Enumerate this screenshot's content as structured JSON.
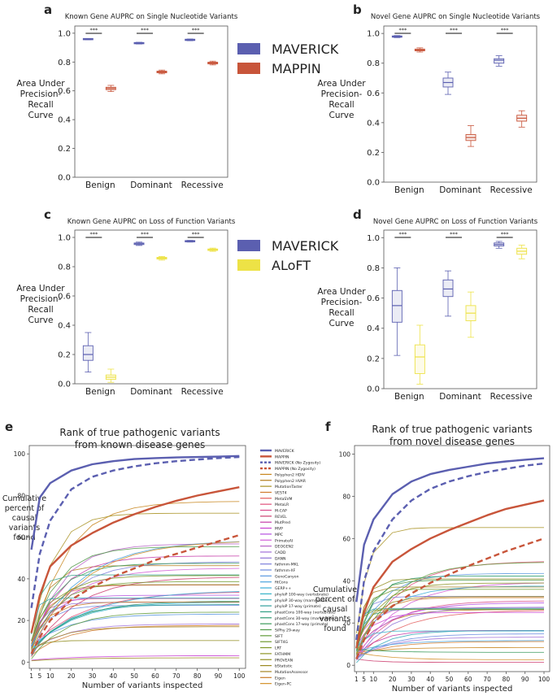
{
  "colors": {
    "maverick": "#5b5fb0",
    "mappin": "#c8553a",
    "aloft": "#ede246",
    "axis": "#555555",
    "text": "#222222"
  },
  "box_panels": [
    {
      "id": "a",
      "letter": "a",
      "title": "Known Gene AUPRC on Single Nucleotide Variants",
      "ylabel": [
        "Area Under",
        "Precision-",
        "Recall",
        "Curve"
      ],
      "yticks": [
        "0.0",
        "0.2",
        "0.4",
        "0.6",
        "0.8",
        "1.0"
      ],
      "categories": [
        "Benign",
        "Dominant",
        "Recessive"
      ],
      "sig": "***",
      "legend": [
        "MAVERICK",
        "MAPPIN"
      ],
      "series": [
        {
          "name": "MAVERICK",
          "color_key": "maverick",
          "boxes": [
            [
              0.955,
              0.957,
              0.959,
              0.961,
              0.963
            ],
            [
              0.925,
              0.928,
              0.931,
              0.934,
              0.937
            ],
            [
              0.948,
              0.951,
              0.954,
              0.957,
              0.96
            ]
          ]
        },
        {
          "name": "MAPPIN",
          "color_key": "mappin",
          "boxes": [
            [
              0.595,
              0.608,
              0.617,
              0.625,
              0.638
            ],
            [
              0.718,
              0.725,
              0.731,
              0.737,
              0.744
            ],
            [
              0.78,
              0.787,
              0.793,
              0.799,
              0.806
            ]
          ]
        }
      ]
    },
    {
      "id": "b",
      "letter": "b",
      "title": "Novel Gene AUPRC on Single Nucleotide Variants",
      "ylabel": [
        "Area Under",
        "Precision-",
        "Recall",
        "Curve"
      ],
      "yticks": [
        "0.0",
        "0.2",
        "0.4",
        "0.6",
        "0.8",
        "1.0"
      ],
      "categories": [
        "Benign",
        "Dominant",
        "Recessive"
      ],
      "sig": "***",
      "legend": [],
      "series": [
        {
          "name": "MAVERICK",
          "color_key": "maverick",
          "boxes": [
            [
              0.972,
              0.976,
              0.979,
              0.982,
              0.986
            ],
            [
              0.59,
              0.64,
              0.67,
              0.7,
              0.74
            ],
            [
              0.78,
              0.8,
              0.82,
              0.83,
              0.85
            ]
          ]
        },
        {
          "name": "MAPPIN",
          "color_key": "mappin",
          "boxes": [
            [
              0.875,
              0.883,
              0.889,
              0.895,
              0.903
            ],
            [
              0.24,
              0.28,
              0.3,
              0.32,
              0.38
            ],
            [
              0.37,
              0.41,
              0.43,
              0.45,
              0.48
            ]
          ]
        }
      ]
    },
    {
      "id": "c",
      "letter": "c",
      "title": "Known Gene AUPRC on Loss of Function Variants",
      "ylabel": [
        "Area Under",
        "Precision-",
        "Recall",
        "Curve"
      ],
      "yticks": [
        "0.0",
        "0.2",
        "0.4",
        "0.6",
        "0.8",
        "1.0"
      ],
      "categories": [
        "Benign",
        "Dominant",
        "Recessive"
      ],
      "sig": "***",
      "legend": [
        "MAVERICK",
        "ALoFT"
      ],
      "series": [
        {
          "name": "MAVERICK",
          "color_key": "maverick",
          "boxes": [
            [
              0.08,
              0.16,
              0.2,
              0.26,
              0.35
            ],
            [
              0.945,
              0.951,
              0.957,
              0.962,
              0.968
            ],
            [
              0.968,
              0.971,
              0.974,
              0.977,
              0.98
            ]
          ]
        },
        {
          "name": "ALoFT",
          "color_key": "aloft",
          "boxes": [
            [
              0.01,
              0.03,
              0.045,
              0.06,
              0.1
            ],
            [
              0.845,
              0.852,
              0.858,
              0.864,
              0.87
            ],
            [
              0.905,
              0.911,
              0.916,
              0.921,
              0.927
            ]
          ]
        }
      ]
    },
    {
      "id": "d",
      "letter": "d",
      "title": "Novel Gene AUPRC on Loss of Function Variants",
      "ylabel": [
        "Area Under",
        "Precision-",
        "Recall",
        "Curve"
      ],
      "yticks": [
        "0.0",
        "0.2",
        "0.4",
        "0.6",
        "0.8",
        "1.0"
      ],
      "categories": [
        "Benign",
        "Dominant",
        "Recessive"
      ],
      "sig": "***",
      "legend": [],
      "series": [
        {
          "name": "MAVERICK",
          "color_key": "maverick",
          "boxes": [
            [
              0.22,
              0.44,
              0.55,
              0.65,
              0.8
            ],
            [
              0.48,
              0.61,
              0.66,
              0.72,
              0.78
            ],
            [
              0.93,
              0.945,
              0.955,
              0.965,
              0.975
            ]
          ]
        },
        {
          "name": "ALoFT",
          "color_key": "aloft",
          "boxes": [
            [
              0.03,
              0.1,
              0.21,
              0.29,
              0.42
            ],
            [
              0.34,
              0.45,
              0.5,
              0.55,
              0.64
            ],
            [
              0.86,
              0.89,
              0.91,
              0.93,
              0.95
            ]
          ]
        }
      ]
    }
  ],
  "rank_legend": [
    {
      "label": "MAVERICK",
      "color": "#5b5fb0",
      "style": "thick"
    },
    {
      "label": "MAPPIN",
      "color": "#c8553a",
      "style": "thick"
    },
    {
      "label": "MAVERICK (No Zygosity)",
      "color": "#5b5fb0",
      "style": "thick-dash"
    },
    {
      "label": "MAPPIN (No Zygosity)",
      "color": "#c8553a",
      "style": "thick-dash"
    },
    {
      "label": "Polyphen2 HDIV",
      "color": "#c8861d",
      "style": "thin"
    },
    {
      "label": "Polyphen2 HVAR",
      "color": "#b37c1b",
      "style": "thin"
    },
    {
      "label": "MutationTaster",
      "color": "#a89020",
      "style": "thin"
    },
    {
      "label": "VEST4",
      "color": "#d07a2c",
      "style": "thin"
    },
    {
      "label": "MetaSVM",
      "color": "#e35a5a",
      "style": "thin"
    },
    {
      "label": "MetaLR",
      "color": "#e0507a",
      "style": "thin"
    },
    {
      "label": "M-CAP",
      "color": "#d84a8a",
      "style": "thin"
    },
    {
      "label": "REVEL",
      "color": "#cc3d6e",
      "style": "thin"
    },
    {
      "label": "MutPred",
      "color": "#c43aa8",
      "style": "thin"
    },
    {
      "label": "MVP",
      "color": "#c83fd0",
      "style": "thin"
    },
    {
      "label": "MPC",
      "color": "#b650e0",
      "style": "thin"
    },
    {
      "label": "PrimateAI",
      "color": "#d25fd8",
      "style": "thin"
    },
    {
      "label": "DEOGEN2",
      "color": "#b864c8",
      "style": "thin"
    },
    {
      "label": "CADD",
      "color": "#a070d8",
      "style": "thin"
    },
    {
      "label": "DANN",
      "color": "#8e74d6",
      "style": "thin"
    },
    {
      "label": "fathmm-MKL",
      "color": "#7d80dc",
      "style": "thin"
    },
    {
      "label": "fathmm-XF",
      "color": "#6a8be0",
      "style": "thin"
    },
    {
      "label": "GenoCanyon",
      "color": "#5a98e0",
      "style": "thin"
    },
    {
      "label": "fitCons",
      "color": "#4aa3de",
      "style": "thin"
    },
    {
      "label": "GERP++",
      "color": "#3aaed8",
      "style": "thin"
    },
    {
      "label": "phyloP 100-way (vertebrate)",
      "color": "#35b3c8",
      "style": "thin"
    },
    {
      "label": "phyloP 30-way (mammalian)",
      "color": "#38a9b8",
      "style": "thin"
    },
    {
      "label": "phyloP 17-way (primate)",
      "color": "#31a09c",
      "style": "thin"
    },
    {
      "label": "phastCons 100-way (vertebrate)",
      "color": "#2f9f84",
      "style": "thin"
    },
    {
      "label": "phastCons 30-way (mammalian)",
      "color": "#2d9a70",
      "style": "thin"
    },
    {
      "label": "phastCons 17-way (primate)",
      "color": "#3a9a5a",
      "style": "thin"
    },
    {
      "label": "SiPhy 29-way",
      "color": "#4f9a48",
      "style": "thin"
    },
    {
      "label": "SIFT",
      "color": "#5f9a38",
      "style": "thin"
    },
    {
      "label": "SIFT4G",
      "color": "#6f9a2e",
      "style": "thin"
    },
    {
      "label": "LRT",
      "color": "#7f9828",
      "style": "thin"
    },
    {
      "label": "FATHMM",
      "color": "#8d9424",
      "style": "thin"
    },
    {
      "label": "PROVEAN",
      "color": "#928e22",
      "style": "thin"
    },
    {
      "label": "bStatistic",
      "color": "#9a8820",
      "style": "thin"
    },
    {
      "label": "MutationAssessor",
      "color": "#a68424",
      "style": "thin"
    },
    {
      "label": "Eigen",
      "color": "#c97a26",
      "style": "thin"
    },
    {
      "label": "Eigen-PC",
      "color": "#d4902a",
      "style": "thin"
    }
  ],
  "chart_data": [
    {
      "type": "box",
      "panel": "a",
      "title": "Known Gene AUPRC on Single Nucleotide Variants",
      "ylabel": "Area Under Precision-Recall Curve",
      "categories": [
        "Benign",
        "Dominant",
        "Recessive"
      ],
      "ylim": [
        0,
        1.05
      ],
      "series": [
        {
          "name": "MAVERICK",
          "medians": [
            0.959,
            0.931,
            0.954
          ]
        },
        {
          "name": "MAPPIN",
          "medians": [
            0.617,
            0.731,
            0.793
          ]
        }
      ]
    },
    {
      "type": "box",
      "panel": "b",
      "title": "Novel Gene AUPRC on Single Nucleotide Variants",
      "ylabel": "Area Under Precision-Recall Curve",
      "categories": [
        "Benign",
        "Dominant",
        "Recessive"
      ],
      "ylim": [
        0,
        1.05
      ],
      "series": [
        {
          "name": "MAVERICK",
          "medians": [
            0.979,
            0.67,
            0.82
          ]
        },
        {
          "name": "MAPPIN",
          "medians": [
            0.889,
            0.3,
            0.43
          ]
        }
      ]
    },
    {
      "type": "box",
      "panel": "c",
      "title": "Known Gene AUPRC on Loss of Function Variants",
      "ylabel": "Area Under Precision-Recall Curve",
      "categories": [
        "Benign",
        "Dominant",
        "Recessive"
      ],
      "ylim": [
        0,
        1.05
      ],
      "series": [
        {
          "name": "MAVERICK",
          "medians": [
            0.2,
            0.957,
            0.974
          ]
        },
        {
          "name": "ALoFT",
          "medians": [
            0.045,
            0.858,
            0.916
          ]
        }
      ]
    },
    {
      "type": "box",
      "panel": "d",
      "title": "Novel Gene AUPRC on Loss of Function Variants",
      "ylabel": "Area Under Precision-Recall Curve",
      "categories": [
        "Benign",
        "Dominant",
        "Recessive"
      ],
      "ylim": [
        0,
        1.05
      ],
      "series": [
        {
          "name": "MAVERICK",
          "medians": [
            0.55,
            0.66,
            0.955
          ]
        },
        {
          "name": "ALoFT",
          "medians": [
            0.21,
            0.5,
            0.91
          ]
        }
      ]
    },
    {
      "type": "line",
      "panel": "e",
      "letter": "e",
      "title": [
        "Rank of true pathogenic variants",
        "from known disease genes"
      ],
      "xlabel": "Number of variants inspected",
      "ylabel": [
        "Cumulative",
        "percent of",
        "causal",
        "variants",
        "found"
      ],
      "xticks": [
        1,
        5,
        10,
        20,
        30,
        40,
        50,
        60,
        70,
        80,
        90,
        100
      ],
      "yticks": [
        0,
        20,
        40,
        60,
        80,
        100
      ],
      "xlim": [
        0,
        103
      ],
      "ylim": [
        -3,
        104
      ],
      "x": [
        1,
        5,
        10,
        20,
        30,
        40,
        50,
        60,
        70,
        80,
        90,
        100
      ],
      "series": [
        {
          "name": "MAVERICK",
          "values": [
            54,
            79,
            86,
            92,
            95,
            96.5,
            97.5,
            98,
            98.3,
            98.5,
            98.7,
            99
          ]
        },
        {
          "name": "MAVERICK (No Zygosity)",
          "values": [
            26,
            52,
            68,
            83,
            89,
            92,
            94,
            95.5,
            96.5,
            97.3,
            98,
            98.5
          ]
        },
        {
          "name": "MAPPIN",
          "values": [
            14,
            32,
            46,
            56,
            62,
            67,
            71,
            74.5,
            77.5,
            80,
            82,
            84
          ]
        },
        {
          "name": "MAPPIN (No Zygosity)",
          "values": [
            4,
            12,
            20,
            30,
            36,
            41,
            45,
            49,
            52,
            55,
            58,
            61
          ]
        }
      ],
      "other_tools_range": [
        0,
        90
      ]
    },
    {
      "type": "line",
      "panel": "f",
      "letter": "f",
      "title": [
        "Rank of true pathogenic variants",
        "from novel disease genes"
      ],
      "xlabel": "Number of variants inspected",
      "ylabel": [
        "Cumulative",
        "percent of",
        "causal",
        "variants",
        "found"
      ],
      "xticks": [
        1,
        5,
        10,
        20,
        30,
        40,
        50,
        60,
        70,
        80,
        90,
        100
      ],
      "yticks": [
        0,
        20,
        40,
        60,
        80,
        100
      ],
      "xlim": [
        0,
        103
      ],
      "ylim": [
        -3,
        104
      ],
      "x": [
        1,
        5,
        10,
        20,
        30,
        40,
        50,
        60,
        70,
        80,
        90,
        100
      ],
      "series": [
        {
          "name": "MAVERICK",
          "values": [
            30,
            57,
            69,
            81,
            87,
            90.5,
            92.5,
            94,
            95.5,
            96.5,
            97.3,
            98
          ]
        },
        {
          "name": "MAVERICK (No Zygosity)",
          "values": [
            12,
            40,
            54,
            69,
            78,
            83.5,
            87,
            89.5,
            91.5,
            93,
            94.5,
            95.5
          ]
        },
        {
          "name": "MAPPIN",
          "values": [
            8,
            25,
            37,
            49,
            55,
            60,
            64,
            67.5,
            71,
            74,
            76,
            78
          ]
        },
        {
          "name": "MAPPIN (No Zygosity)",
          "values": [
            3,
            12,
            20,
            28,
            34,
            39,
            43,
            47,
            50.5,
            54,
            57,
            60
          ]
        }
      ],
      "other_tools_range": [
        0,
        84
      ]
    }
  ]
}
